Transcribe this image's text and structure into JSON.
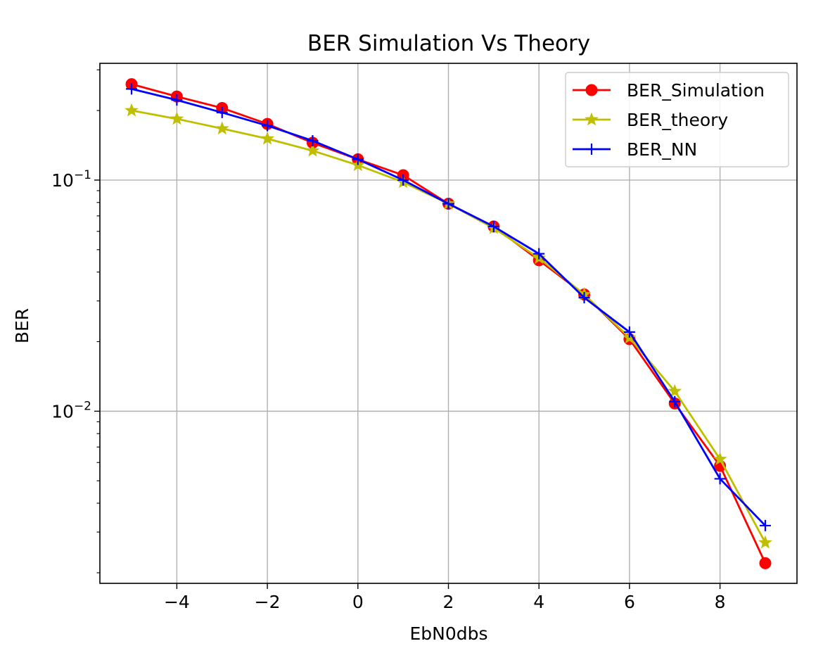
{
  "chart_data": {
    "type": "line",
    "title": "BER Simulation Vs Theory",
    "xlabel": "EbN0dbs",
    "ylabel": "BER",
    "x_scale": "linear",
    "y_scale": "log",
    "xlim": [
      -5.7,
      9.7
    ],
    "ylim": [
      0.0018,
      0.32
    ],
    "x_ticks": [
      -4,
      -2,
      0,
      2,
      4,
      6,
      8
    ],
    "x_tick_labels": [
      "−4",
      "−2",
      "0",
      "2",
      "4",
      "6",
      "8"
    ],
    "y_ticks": [
      0.1,
      0.01
    ],
    "y_tick_labels": [
      {
        "base": "10",
        "exp": "−1"
      },
      {
        "base": "10",
        "exp": "−2"
      }
    ],
    "grid": true,
    "legend_position": "upper right",
    "x": [
      -5,
      -4,
      -3,
      -2,
      -1,
      0,
      1,
      2,
      3,
      4,
      5,
      6,
      7,
      8,
      9
    ],
    "series": [
      {
        "name": "BER_Simulation",
        "color": "#ff0000",
        "marker": "circle",
        "values": [
          0.26,
          0.23,
          0.205,
          0.175,
          0.145,
          0.123,
          0.105,
          0.079,
          0.063,
          0.045,
          0.032,
          0.0205,
          0.0108,
          0.0058,
          0.0022
        ]
      },
      {
        "name": "BER_theory",
        "color": "#bfbf00",
        "marker": "star",
        "values": [
          0.2,
          0.184,
          0.167,
          0.151,
          0.134,
          0.116,
          0.098,
          0.079,
          0.062,
          0.046,
          0.032,
          0.0208,
          0.0122,
          0.0062,
          0.0027
        ]
      },
      {
        "name": "BER_NN",
        "color": "#0000ff",
        "marker": "plus",
        "values": [
          0.248,
          0.222,
          0.196,
          0.172,
          0.148,
          0.123,
          0.1,
          0.079,
          0.063,
          0.048,
          0.031,
          0.022,
          0.011,
          0.0051,
          0.0032
        ]
      }
    ]
  }
}
